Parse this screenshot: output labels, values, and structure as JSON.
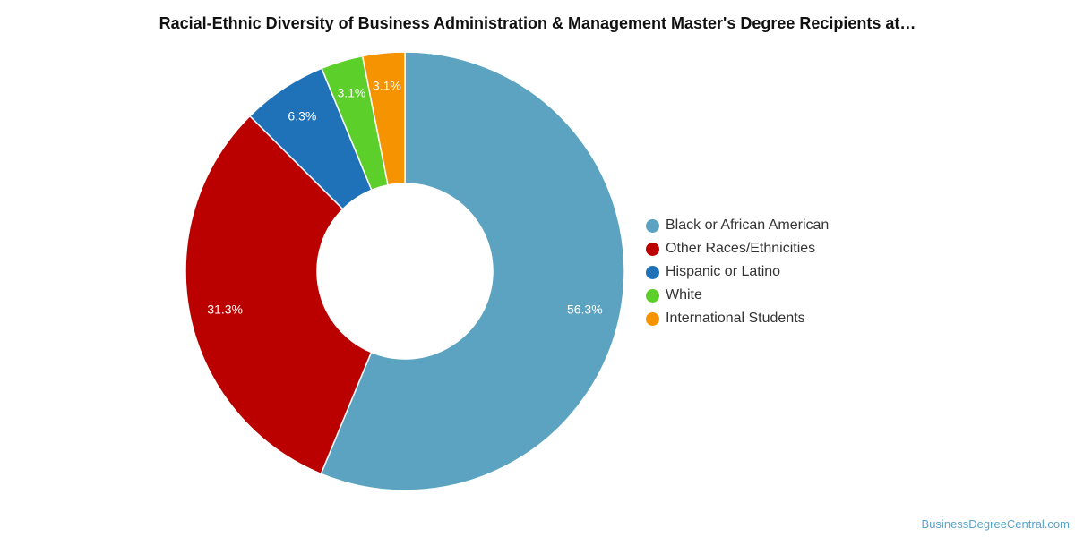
{
  "watermark": "BusinessDegreeCentral.com",
  "chart_data": {
    "type": "pie",
    "variant": "donut",
    "title": "Racial-Ethnic Diversity of Business Administration & Management Master's Degree Recipients at…",
    "legend_position": "right",
    "slices": [
      {
        "name": "Black or African American",
        "value": 56.3,
        "label": "56.3%",
        "color": "#5ba3c0"
      },
      {
        "name": "Other Races/Ethnicities",
        "value": 31.3,
        "label": "31.3%",
        "color": "#bb0000"
      },
      {
        "name": "Hispanic or Latino",
        "value": 6.3,
        "label": "6.3%",
        "color": "#1f72b8"
      },
      {
        "name": "White",
        "value": 3.1,
        "label": "3.1%",
        "color": "#5ccf2a"
      },
      {
        "name": "International Students",
        "value": 3.1,
        "label": "3.1%",
        "color": "#f59300"
      }
    ]
  }
}
